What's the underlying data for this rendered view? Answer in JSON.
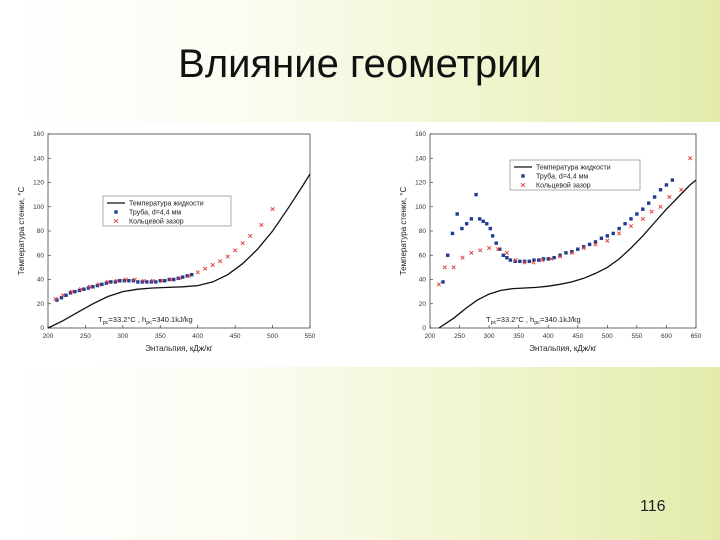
{
  "slide": {
    "title": "Влияние геометрии",
    "page_number": "116"
  },
  "colors": {
    "fluid_line": "#111111",
    "tube_points": "#1f3a93",
    "annular_points": "#e23b3b",
    "axis": "#444444"
  },
  "chart_data": [
    {
      "type": "scatter",
      "title": "",
      "xlabel": "Энтальпия, кДж/кг",
      "ylabel": "Температура стенки, °С",
      "xlim": [
        200,
        550
      ],
      "ylim": [
        0,
        160
      ],
      "x_ticks": [
        200,
        250,
        300,
        350,
        400,
        450,
        500,
        550
      ],
      "y_ticks": [
        0,
        20,
        40,
        60,
        80,
        100,
        120,
        140,
        160
      ],
      "grid": false,
      "legend_position": "upper-left-center",
      "annotation": {
        "pre": "T",
        "sub1": "pc",
        "mid": "=33.2°C , h",
        "sub2": "pc",
        "post": "=340.1kJ/kg"
      },
      "series": [
        {
          "name": "Температура жидкости",
          "kind": "line",
          "x": [
            200,
            220,
            240,
            260,
            280,
            300,
            320,
            340,
            360,
            380,
            400,
            420,
            440,
            460,
            480,
            500,
            520,
            540,
            550
          ],
          "y": [
            0,
            6,
            13,
            20,
            26,
            30,
            32,
            33,
            33.5,
            34,
            35,
            38,
            44,
            53,
            65,
            80,
            98,
            117,
            127
          ]
        },
        {
          "name": "Труба, d=4,4 мм",
          "kind": "points",
          "marker": "square",
          "x": [
            212,
            218,
            224,
            230,
            236,
            242,
            248,
            254,
            260,
            266,
            272,
            278,
            284,
            290,
            296,
            302,
            308,
            314,
            320,
            326,
            332,
            338,
            344,
            350,
            356,
            362,
            368,
            374,
            380,
            386,
            392
          ],
          "y": [
            23,
            25,
            27,
            29,
            30,
            31,
            32,
            33,
            34,
            35,
            36,
            37,
            38,
            38,
            39,
            39,
            39,
            39,
            38,
            38,
            38,
            38,
            38,
            39,
            39,
            40,
            40,
            41,
            42,
            43,
            44
          ]
        },
        {
          "name": "Кольцевой зазор",
          "kind": "points",
          "marker": "x",
          "x": [
            210,
            220,
            232,
            244,
            256,
            268,
            280,
            292,
            304,
            316,
            328,
            340,
            352,
            364,
            376,
            388,
            400,
            410,
            420,
            430,
            440,
            450,
            460,
            470,
            485,
            500
          ],
          "y": [
            24,
            27,
            30,
            32,
            34,
            36,
            38,
            39,
            40,
            40,
            39,
            39,
            39,
            40,
            41,
            43,
            46,
            49,
            52,
            55,
            59,
            64,
            70,
            76,
            85,
            98
          ]
        }
      ]
    },
    {
      "type": "scatter",
      "title": "",
      "xlabel": "Энтальпия, кДж/кг",
      "ylabel": "Температура стенки, °С",
      "xlim": [
        200,
        650
      ],
      "ylim": [
        0,
        160
      ],
      "x_ticks": [
        200,
        250,
        300,
        350,
        400,
        450,
        500,
        550,
        600,
        650
      ],
      "y_ticks": [
        0,
        20,
        40,
        60,
        80,
        100,
        120,
        140,
        160
      ],
      "grid": false,
      "legend_position": "upper-center",
      "annotation": {
        "pre": "T",
        "sub1": "pc",
        "mid": "=33.2°C , h",
        "sub2": "pc",
        "post": "=340.1kJ/kg"
      },
      "series": [
        {
          "name": "Температура жидкости",
          "kind": "line",
          "x": [
            215,
            240,
            260,
            280,
            300,
            320,
            340,
            360,
            380,
            400,
            420,
            440,
            460,
            480,
            500,
            520,
            540,
            560,
            580,
            600,
            620,
            640,
            650
          ],
          "y": [
            0,
            8,
            16,
            23,
            28,
            31,
            32.5,
            33,
            33.5,
            34.5,
            36,
            38,
            41,
            45,
            50,
            57,
            66,
            76,
            87,
            98,
            108,
            118,
            122
          ]
        },
        {
          "name": "Труба, d=4,4 мм",
          "kind": "points",
          "marker": "square",
          "x": [
            222,
            230,
            238,
            246,
            254,
            262,
            270,
            278,
            284,
            290,
            296,
            302,
            306,
            312,
            318,
            324,
            330,
            336,
            344,
            352,
            360,
            368,
            376,
            384,
            392,
            400,
            410,
            420,
            430,
            440,
            450,
            460,
            470,
            480,
            490,
            500,
            510,
            520,
            530,
            540,
            550,
            560,
            570,
            580,
            590,
            600,
            610
          ],
          "y": [
            38,
            60,
            78,
            94,
            82,
            86,
            90,
            110,
            90,
            88,
            86,
            82,
            76,
            70,
            65,
            60,
            58,
            56,
            55,
            55,
            55,
            55,
            56,
            56,
            57,
            57,
            58,
            60,
            62,
            63,
            65,
            67,
            69,
            71,
            74,
            76,
            78,
            82,
            86,
            90,
            94,
            98,
            103,
            108,
            114,
            118,
            122
          ]
        },
        {
          "name": "Кольцевой зазор",
          "kind": "points",
          "marker": "x",
          "x": [
            215,
            225,
            240,
            255,
            270,
            285,
            300,
            315,
            330,
            345,
            360,
            375,
            390,
            405,
            420,
            440,
            460,
            480,
            500,
            520,
            540,
            560,
            575,
            590,
            605,
            625,
            640
          ],
          "y": [
            36,
            50,
            50,
            58,
            62,
            64,
            66,
            65,
            62,
            56,
            54,
            54,
            56,
            57,
            59,
            62,
            66,
            69,
            72,
            78,
            84,
            90,
            96,
            100,
            108,
            114,
            140
          ]
        }
      ]
    }
  ]
}
